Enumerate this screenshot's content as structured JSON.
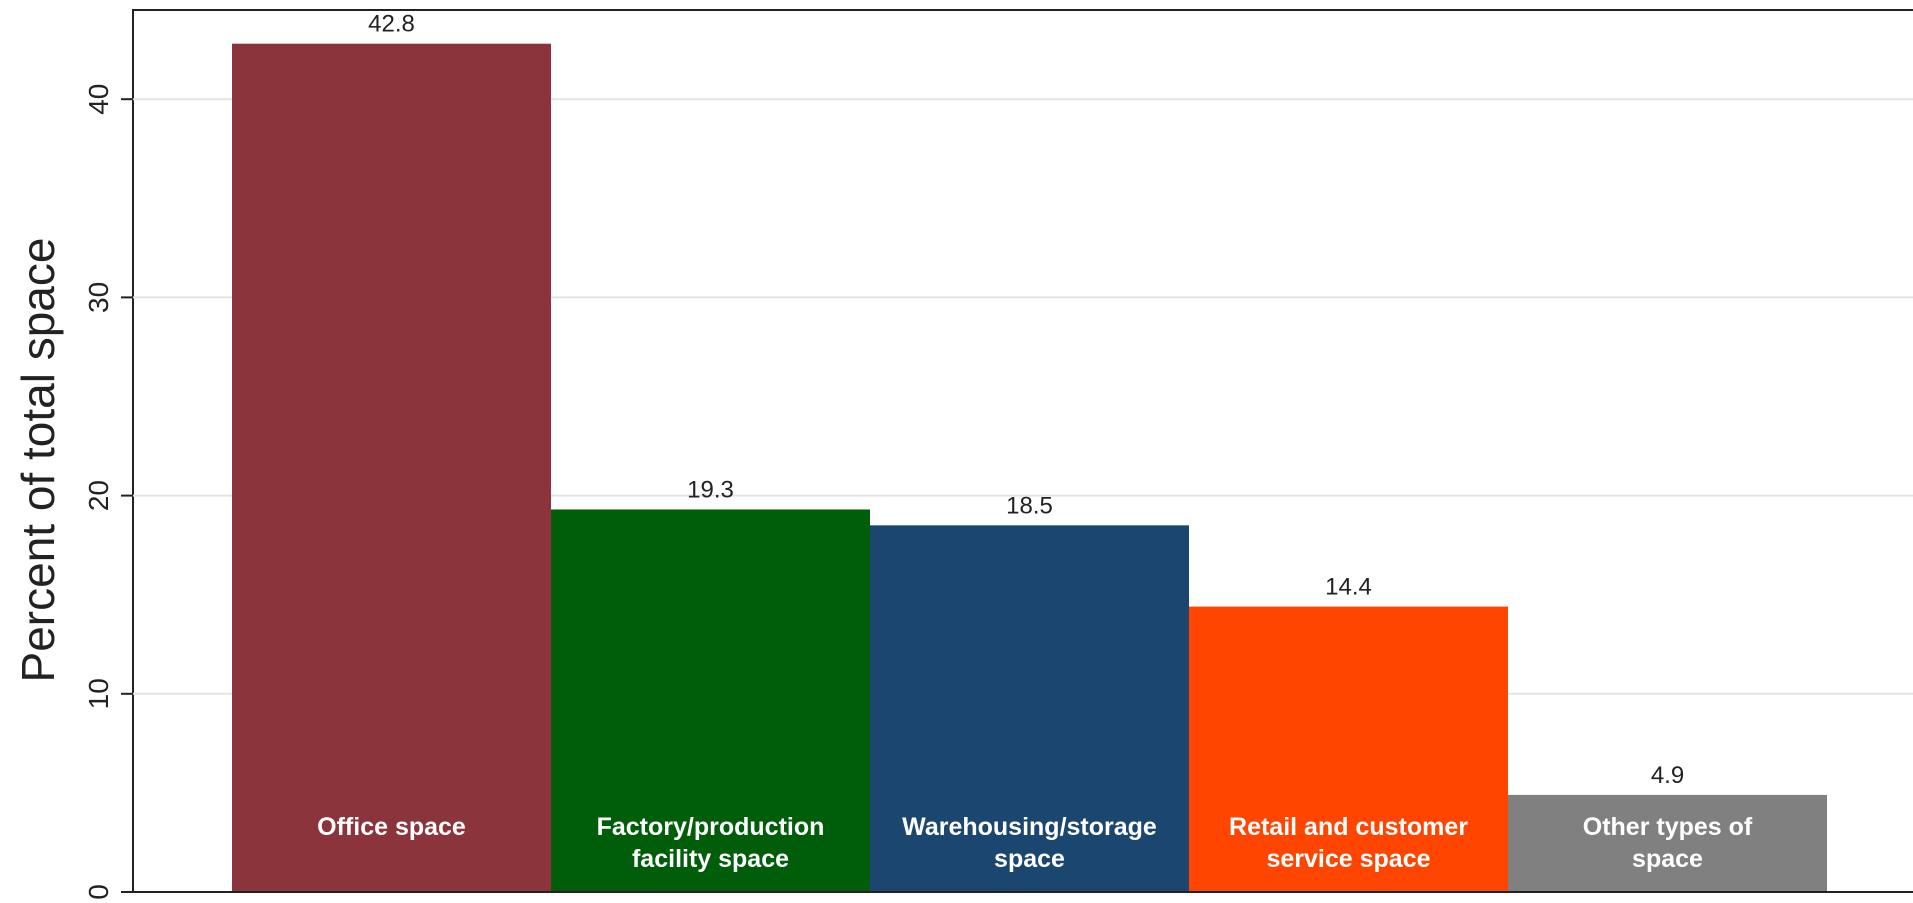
{
  "chart_data": {
    "type": "bar",
    "ylabel": "Percent of total space",
    "xlabel": "",
    "ylim": [
      0,
      44.5
    ],
    "yticks": [
      0,
      10,
      20,
      30,
      40
    ],
    "grid": true,
    "categories": [
      [
        "Office space"
      ],
      [
        "Factory/production",
        "facility space"
      ],
      [
        "Warehousing/storage",
        "space"
      ],
      [
        "Retail and customer",
        "service space"
      ],
      [
        "Other types of",
        "space"
      ]
    ],
    "values": [
      42.8,
      19.3,
      18.5,
      14.4,
      4.9
    ],
    "value_labels": [
      "42.8",
      "19.3",
      "18.5",
      "14.4",
      "4.9"
    ],
    "colors": [
      "#8B343C",
      "#005E0A",
      "#1B4670",
      "#FF4500",
      "#808080"
    ]
  }
}
